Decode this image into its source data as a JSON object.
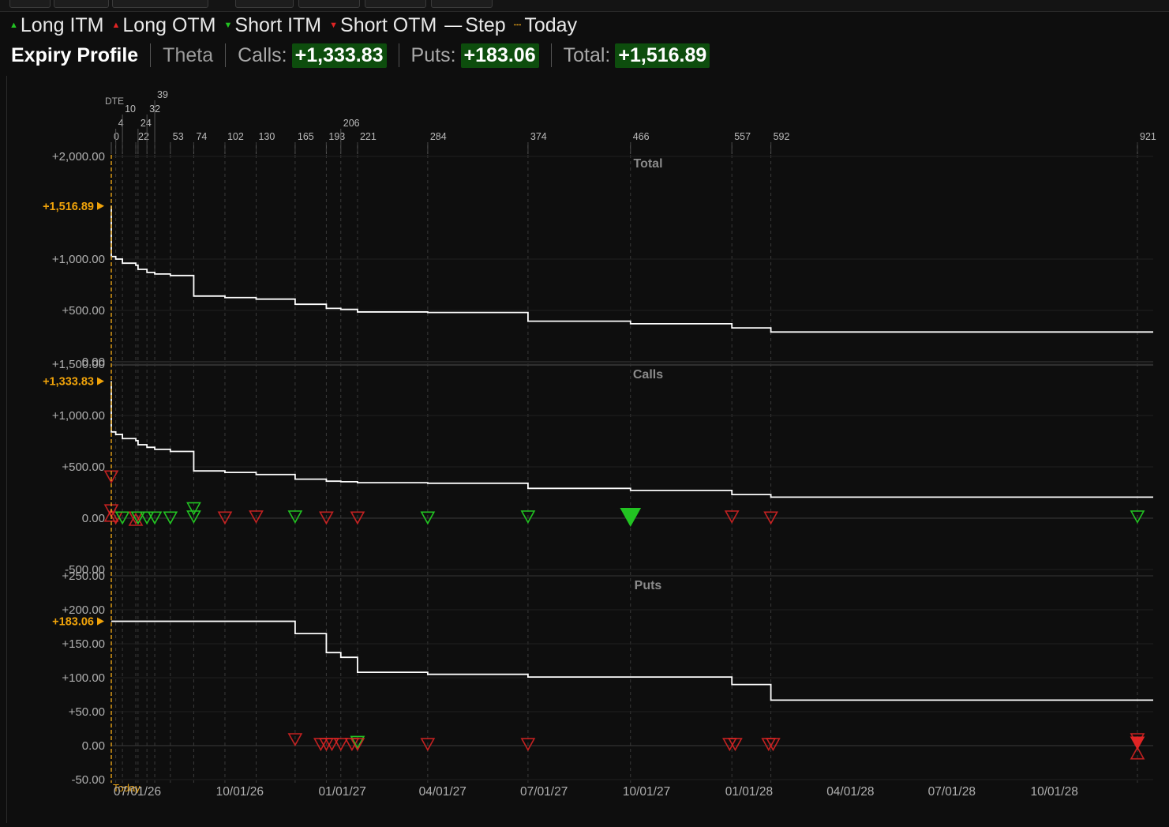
{
  "legend": {
    "long_itm": "Long ITM",
    "long_otm": "Long OTM",
    "short_itm": "Short ITM",
    "short_otm": "Short OTM",
    "step": "Step",
    "today": "Today"
  },
  "header": {
    "title": "Expiry Profile",
    "theta": "Theta",
    "calls_label": "Calls:",
    "calls_value": "+1,333.83",
    "puts_label": "Puts:",
    "puts_value": "+183.06",
    "total_label": "Total:",
    "total_value": "+1,516.89"
  },
  "colors": {
    "long_itm": "#22c322",
    "long_otm": "#e02424",
    "short_itm": "#22c322",
    "short_otm": "#e02424",
    "today": "#e8a317",
    "step_line": "#ffffff",
    "marker_label": "#f0a30a",
    "badge_bg": "#0d4d0d"
  },
  "chart_data": {
    "type": "line",
    "step": true,
    "dte_label": "DTE",
    "dte_ticks": [
      0,
      4,
      10,
      22,
      24,
      32,
      39,
      53,
      74,
      102,
      130,
      165,
      193,
      206,
      221,
      284,
      374,
      466,
      557,
      592,
      921
    ],
    "x_ticks": [
      "07/01/26",
      "10/01/26",
      "01/01/27",
      "04/01/27",
      "07/01/27",
      "10/01/27",
      "01/01/28",
      "04/01/28",
      "07/01/28",
      "10/01/28"
    ],
    "x_tick_dte": [
      0,
      92,
      184,
      274,
      365,
      457,
      549,
      640,
      731,
      823
    ],
    "today_label": "Today",
    "panels": [
      {
        "name": "Total",
        "ylim": [
          0,
          2000
        ],
        "yticks": [
          "+2,000.00",
          "+1,000.00",
          "+500.00",
          "0.00"
        ],
        "ytick_values": [
          2000,
          1000,
          500,
          0
        ],
        "current_label": "+1,516.89",
        "current_value": 1516.89,
        "steps": [
          [
            0,
            1516.89
          ],
          [
            0,
            1025
          ],
          [
            4,
            1000
          ],
          [
            10,
            960
          ],
          [
            22,
            940
          ],
          [
            24,
            900
          ],
          [
            32,
            870
          ],
          [
            39,
            855
          ],
          [
            53,
            840
          ],
          [
            74,
            640
          ],
          [
            102,
            625
          ],
          [
            130,
            610
          ],
          [
            165,
            560
          ],
          [
            193,
            520
          ],
          [
            206,
            510
          ],
          [
            221,
            485
          ],
          [
            284,
            480
          ],
          [
            374,
            395
          ],
          [
            466,
            370
          ],
          [
            557,
            330
          ],
          [
            592,
            290
          ],
          [
            921,
            290
          ]
        ],
        "markers": []
      },
      {
        "name": "Calls",
        "ylim": [
          -500,
          1500
        ],
        "yticks": [
          "+1,500.00",
          "+1,000.00",
          "+500.00",
          "0.00",
          "-500.00"
        ],
        "ytick_values": [
          1500,
          1000,
          500,
          0,
          -500
        ],
        "current_label": "+1,333.83",
        "current_value": 1333.83,
        "steps": [
          [
            0,
            1333.83
          ],
          [
            0,
            840
          ],
          [
            4,
            815
          ],
          [
            10,
            775
          ],
          [
            22,
            755
          ],
          [
            24,
            715
          ],
          [
            32,
            690
          ],
          [
            39,
            670
          ],
          [
            53,
            650
          ],
          [
            74,
            460
          ],
          [
            102,
            445
          ],
          [
            130,
            425
          ],
          [
            165,
            380
          ],
          [
            193,
            360
          ],
          [
            206,
            355
          ],
          [
            221,
            345
          ],
          [
            284,
            340
          ],
          [
            374,
            290
          ],
          [
            466,
            270
          ],
          [
            557,
            230
          ],
          [
            592,
            205
          ],
          [
            921,
            205
          ]
        ],
        "markers": [
          {
            "dte": 0,
            "value": 410,
            "kind": "short_otm"
          },
          {
            "dte": 0,
            "value": 80,
            "kind": "short_otm"
          },
          {
            "dte": 0,
            "value": 20,
            "kind": "long_otm"
          },
          {
            "dte": 4,
            "value": 10,
            "kind": "short_otm"
          },
          {
            "dte": 10,
            "value": 10,
            "kind": "short_itm"
          },
          {
            "dte": 22,
            "value": -20,
            "kind": "long_otm"
          },
          {
            "dte": 22,
            "value": 10,
            "kind": "short_otm"
          },
          {
            "dte": 24,
            "value": 10,
            "kind": "short_itm"
          },
          {
            "dte": 32,
            "value": 10,
            "kind": "short_itm"
          },
          {
            "dte": 39,
            "value": 10,
            "kind": "short_itm"
          },
          {
            "dte": 53,
            "value": 10,
            "kind": "short_itm"
          },
          {
            "dte": 74,
            "value": 20,
            "kind": "short_itm"
          },
          {
            "dte": 74,
            "value": 100,
            "kind": "short_itm"
          },
          {
            "dte": 102,
            "value": 10,
            "kind": "short_otm"
          },
          {
            "dte": 130,
            "value": 20,
            "kind": "short_otm"
          },
          {
            "dte": 165,
            "value": 20,
            "kind": "short_itm"
          },
          {
            "dte": 193,
            "value": 10,
            "kind": "short_otm"
          },
          {
            "dte": 221,
            "value": 10,
            "kind": "short_otm"
          },
          {
            "dte": 284,
            "value": 10,
            "kind": "short_itm"
          },
          {
            "dte": 374,
            "value": 20,
            "kind": "short_itm"
          },
          {
            "dte": 466,
            "value": 20,
            "kind": "short_itm",
            "filled": true
          },
          {
            "dte": 557,
            "value": 20,
            "kind": "short_otm"
          },
          {
            "dte": 592,
            "value": 10,
            "kind": "short_otm"
          },
          {
            "dte": 921,
            "value": 20,
            "kind": "short_itm"
          }
        ]
      },
      {
        "name": "Puts",
        "ylim": [
          -50,
          250
        ],
        "yticks": [
          "+250.00",
          "+200.00",
          "+150.00",
          "+100.00",
          "+50.00",
          "0.00",
          "-50.00"
        ],
        "ytick_values": [
          250,
          200,
          150,
          100,
          50,
          0,
          -50
        ],
        "current_label": "+183.06",
        "current_value": 183.06,
        "steps": [
          [
            0,
            183.06
          ],
          [
            165,
            165
          ],
          [
            193,
            137
          ],
          [
            206,
            130
          ],
          [
            221,
            108
          ],
          [
            284,
            105
          ],
          [
            374,
            101
          ],
          [
            466,
            101
          ],
          [
            557,
            90
          ],
          [
            592,
            67
          ],
          [
            921,
            67
          ]
        ],
        "markers": [
          {
            "dte": 165,
            "value": 10,
            "kind": "short_otm"
          },
          {
            "dte": 188,
            "value": 3,
            "kind": "short_otm"
          },
          {
            "dte": 193,
            "value": 3,
            "kind": "short_otm"
          },
          {
            "dte": 198,
            "value": 3,
            "kind": "short_otm"
          },
          {
            "dte": 206,
            "value": 3,
            "kind": "short_otm"
          },
          {
            "dte": 216,
            "value": 3,
            "kind": "short_otm"
          },
          {
            "dte": 221,
            "value": 6,
            "kind": "short_itm"
          },
          {
            "dte": 221,
            "value": 3,
            "kind": "short_otm"
          },
          {
            "dte": 284,
            "value": 3,
            "kind": "short_otm"
          },
          {
            "dte": 374,
            "value": 3,
            "kind": "short_otm"
          },
          {
            "dte": 555,
            "value": 3,
            "kind": "short_otm"
          },
          {
            "dte": 560,
            "value": 3,
            "kind": "short_otm"
          },
          {
            "dte": 590,
            "value": 3,
            "kind": "short_otm"
          },
          {
            "dte": 594,
            "value": 3,
            "kind": "short_otm"
          },
          {
            "dte": 921,
            "value": 10,
            "kind": "short_otm"
          },
          {
            "dte": 921,
            "value": 5,
            "kind": "short_otm",
            "filled": true
          },
          {
            "dte": 921,
            "value": -12,
            "kind": "long_otm"
          }
        ]
      }
    ]
  }
}
